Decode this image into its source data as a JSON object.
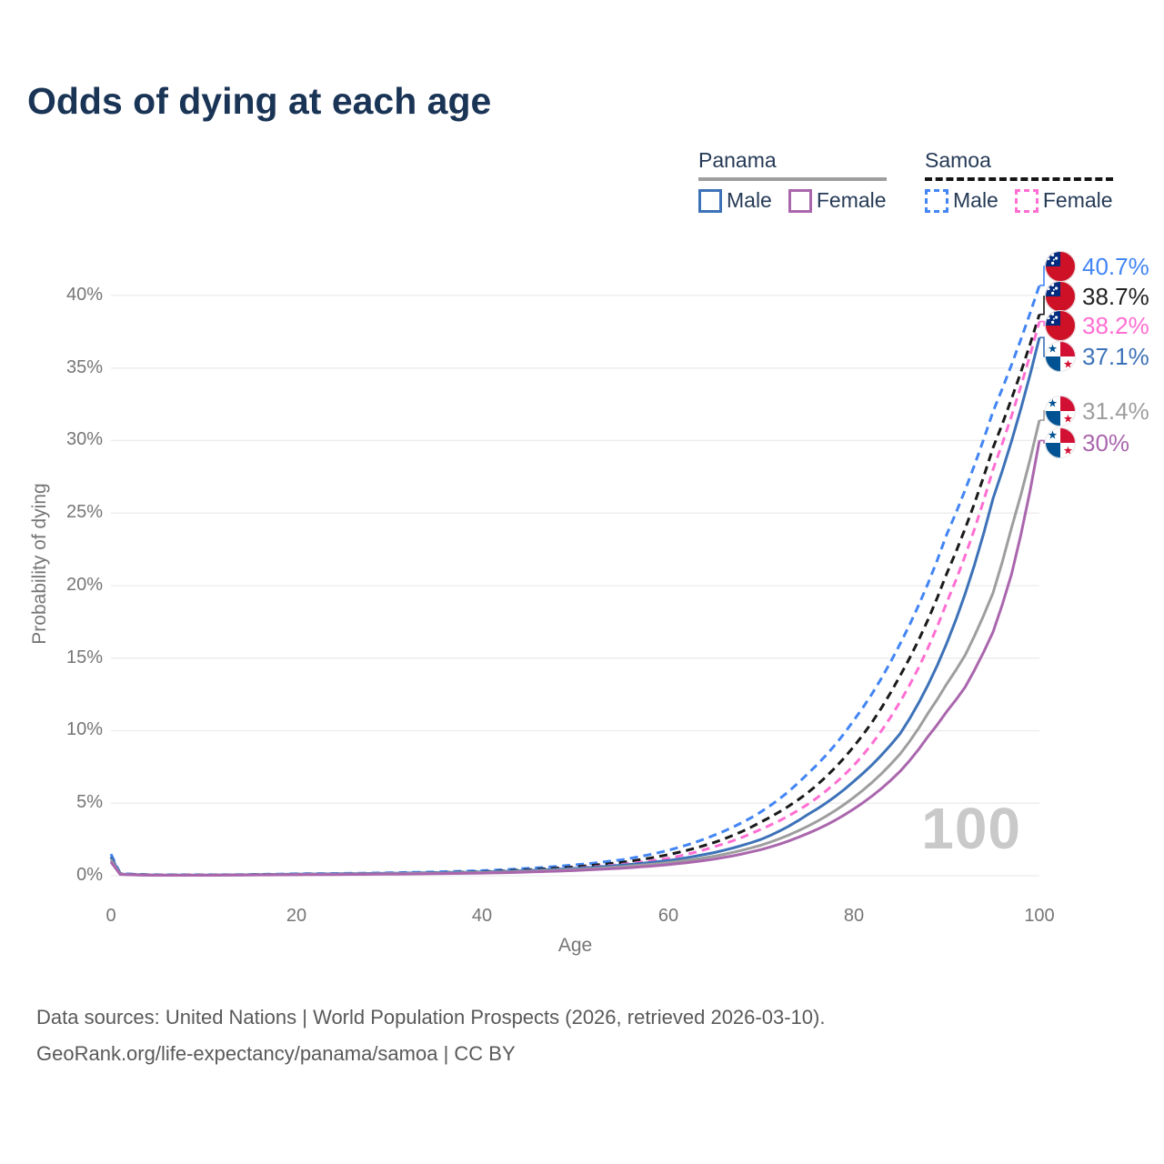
{
  "title": "Odds of dying at each age",
  "legend": {
    "groups": [
      {
        "label": "Panama",
        "underline_style": "solid",
        "underline_color": "#9e9e9e",
        "items": [
          {
            "label": "Male",
            "color": "#3d72b8",
            "dashed": false
          },
          {
            "label": "Female",
            "color": "#aa66ad",
            "dashed": false
          }
        ]
      },
      {
        "label": "Samoa",
        "underline_style": "dashed",
        "underline_color": "#141414",
        "items": [
          {
            "label": "Male",
            "color": "#4285f4",
            "dashed": true
          },
          {
            "label": "Female",
            "color": "#ff6ed2",
            "dashed": true
          }
        ]
      }
    ]
  },
  "chart_data": {
    "type": "line",
    "title": "Odds of dying at each age",
    "xlabel": "Age",
    "ylabel": "Probability of dying",
    "xlim": [
      0,
      100
    ],
    "ylim": [
      0,
      42
    ],
    "x_ticks": [
      "0",
      "20",
      "40",
      "60",
      "80",
      "100"
    ],
    "y_ticks": [
      "0%",
      "5%",
      "10%",
      "15%",
      "20%",
      "25%",
      "30%",
      "35%",
      "40%"
    ],
    "grid": "horizontal",
    "watermark": "100",
    "series": [
      {
        "name": "Samoa Male",
        "country": "samoa",
        "sex": "male",
        "color": "#4285f4",
        "line_style": "dashed",
        "end_label": "40.7%",
        "end_value": 40.7,
        "points": [
          [
            0,
            1.5
          ],
          [
            1,
            0.15
          ],
          [
            5,
            0.06
          ],
          [
            10,
            0.06
          ],
          [
            15,
            0.09
          ],
          [
            20,
            0.13
          ],
          [
            30,
            0.2
          ],
          [
            40,
            0.35
          ],
          [
            50,
            0.75
          ],
          [
            55,
            1.1
          ],
          [
            60,
            1.75
          ],
          [
            65,
            2.8
          ],
          [
            70,
            4.4
          ],
          [
            75,
            7.0
          ],
          [
            80,
            10.7
          ],
          [
            85,
            16.0
          ],
          [
            90,
            23.5
          ],
          [
            95,
            32.0
          ],
          [
            100,
            40.7
          ]
        ]
      },
      {
        "name": "Samoa Both sexes",
        "country": "samoa",
        "sex": "both",
        "color": "#1a1a1a",
        "line_style": "dashed",
        "end_label": "38.7%",
        "end_value": 38.7,
        "points": [
          [
            0,
            1.3
          ],
          [
            1,
            0.13
          ],
          [
            5,
            0.05
          ],
          [
            10,
            0.05
          ],
          [
            15,
            0.07
          ],
          [
            20,
            0.1
          ],
          [
            30,
            0.16
          ],
          [
            40,
            0.28
          ],
          [
            50,
            0.62
          ],
          [
            55,
            0.92
          ],
          [
            60,
            1.45
          ],
          [
            65,
            2.3
          ],
          [
            70,
            3.7
          ],
          [
            75,
            5.7
          ],
          [
            80,
            8.9
          ],
          [
            85,
            13.8
          ],
          [
            90,
            20.8
          ],
          [
            95,
            29.5
          ],
          [
            100,
            38.7
          ]
        ]
      },
      {
        "name": "Samoa Female",
        "country": "samoa",
        "sex": "female",
        "color": "#ff6ed2",
        "line_style": "dashed",
        "end_label": "38.2%",
        "end_value": 38.2,
        "points": [
          [
            0,
            1.1
          ],
          [
            1,
            0.11
          ],
          [
            5,
            0.04
          ],
          [
            10,
            0.04
          ],
          [
            15,
            0.06
          ],
          [
            20,
            0.08
          ],
          [
            30,
            0.13
          ],
          [
            40,
            0.24
          ],
          [
            50,
            0.52
          ],
          [
            55,
            0.78
          ],
          [
            60,
            1.2
          ],
          [
            65,
            2.0
          ],
          [
            70,
            3.2
          ],
          [
            75,
            4.9
          ],
          [
            80,
            7.6
          ],
          [
            85,
            12.0
          ],
          [
            90,
            18.8
          ],
          [
            95,
            28.0
          ],
          [
            100,
            38.2
          ]
        ]
      },
      {
        "name": "Panama Male",
        "country": "panama",
        "sex": "male",
        "color": "#3d72b8",
        "line_style": "solid",
        "end_label": "37.1%",
        "end_value": 37.1,
        "points": [
          [
            0,
            1.3
          ],
          [
            1,
            0.11
          ],
          [
            5,
            0.04
          ],
          [
            10,
            0.04
          ],
          [
            15,
            0.07
          ],
          [
            20,
            0.11
          ],
          [
            30,
            0.17
          ],
          [
            40,
            0.26
          ],
          [
            50,
            0.5
          ],
          [
            55,
            0.73
          ],
          [
            60,
            1.05
          ],
          [
            65,
            1.6
          ],
          [
            70,
            2.5
          ],
          [
            75,
            4.2
          ],
          [
            80,
            6.5
          ],
          [
            85,
            9.8
          ],
          [
            90,
            16.0
          ],
          [
            95,
            26.0
          ],
          [
            100,
            37.1
          ]
        ]
      },
      {
        "name": "Panama Both sexes",
        "country": "panama",
        "sex": "both",
        "color": "#9e9e9e",
        "line_style": "solid",
        "end_label": "31.4%",
        "end_value": 31.4,
        "points": [
          [
            0,
            1.1
          ],
          [
            1,
            0.1
          ],
          [
            5,
            0.03
          ],
          [
            10,
            0.03
          ],
          [
            15,
            0.06
          ],
          [
            20,
            0.09
          ],
          [
            30,
            0.14
          ],
          [
            40,
            0.22
          ],
          [
            50,
            0.43
          ],
          [
            55,
            0.62
          ],
          [
            60,
            0.9
          ],
          [
            65,
            1.35
          ],
          [
            70,
            2.1
          ],
          [
            75,
            3.4
          ],
          [
            80,
            5.4
          ],
          [
            85,
            8.4
          ],
          [
            88,
            11.2
          ],
          [
            90,
            13.2
          ],
          [
            92,
            15.2
          ],
          [
            95,
            19.5
          ],
          [
            97,
            24.0
          ],
          [
            100,
            31.4
          ]
        ]
      },
      {
        "name": "Panama Female",
        "country": "panama",
        "sex": "female",
        "color": "#aa66ad",
        "line_style": "solid",
        "end_label": "30%",
        "end_value": 30,
        "points": [
          [
            0,
            0.95
          ],
          [
            1,
            0.09
          ],
          [
            5,
            0.03
          ],
          [
            10,
            0.03
          ],
          [
            15,
            0.05
          ],
          [
            20,
            0.07
          ],
          [
            30,
            0.11
          ],
          [
            40,
            0.18
          ],
          [
            50,
            0.36
          ],
          [
            55,
            0.52
          ],
          [
            60,
            0.76
          ],
          [
            65,
            1.15
          ],
          [
            70,
            1.8
          ],
          [
            75,
            2.9
          ],
          [
            80,
            4.6
          ],
          [
            85,
            7.2
          ],
          [
            88,
            9.6
          ],
          [
            90,
            11.3
          ],
          [
            92,
            13.0
          ],
          [
            95,
            16.8
          ],
          [
            97,
            20.8
          ],
          [
            100,
            30.0
          ]
        ]
      }
    ]
  },
  "footer": {
    "line1": "Data sources: United Nations | World Population Prospects (2026, retrieved 2026-03-10).",
    "line2": "GeoRank.org/life-expectancy/panama/samoa | CC BY"
  }
}
